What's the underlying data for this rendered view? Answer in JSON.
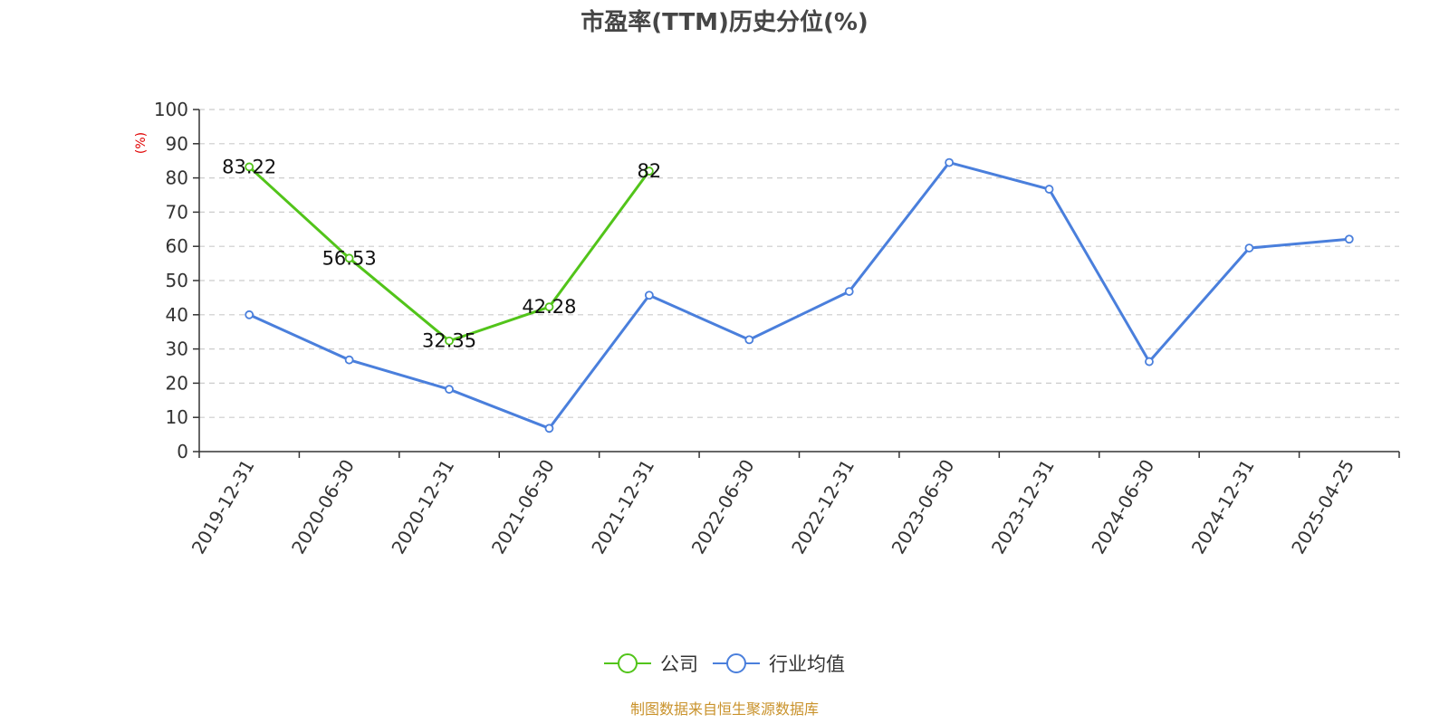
{
  "chart_data": {
    "type": "line",
    "title": "市盈率(TTM)历史分位(%)",
    "ylabel": "(%)",
    "xlabel": "",
    "ylim": [
      0,
      100
    ],
    "yticks": [
      0,
      10,
      20,
      30,
      40,
      50,
      60,
      70,
      80,
      90,
      100
    ],
    "categories": [
      "2019-12-31",
      "2020-06-30",
      "2020-12-31",
      "2021-06-30",
      "2021-12-31",
      "2022-06-30",
      "2022-12-31",
      "2023-06-30",
      "2023-12-31",
      "2024-06-30",
      "2024-12-31",
      "2025-04-25"
    ],
    "series": [
      {
        "name": "公司",
        "color": "#52c41a",
        "show_labels": true,
        "values": [
          83.22,
          56.53,
          32.35,
          42.28,
          82,
          null,
          null,
          null,
          null,
          null,
          null,
          null
        ],
        "labels": [
          "83.22",
          "56.53",
          "32.35",
          "42.28",
          "82",
          "",
          "",
          "",
          "",
          "",
          "",
          ""
        ]
      },
      {
        "name": "行业均值",
        "color": "#4a7fdc",
        "show_labels": false,
        "values": [
          40,
          26.8,
          18.2,
          6.8,
          45.7,
          32.7,
          46.8,
          84.5,
          76.7,
          26.3,
          59.5,
          62.1
        ]
      }
    ],
    "grid": true,
    "legend_position": "bottom-center"
  },
  "source_note": "制图数据来自恒生聚源数据库"
}
